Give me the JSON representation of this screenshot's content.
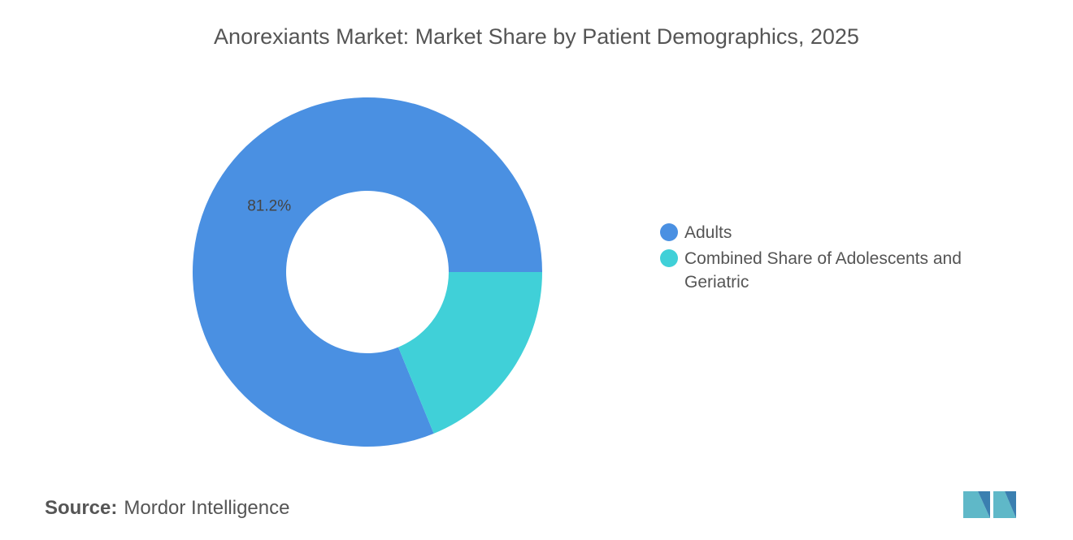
{
  "chart_data": {
    "type": "donut",
    "title": "Anorexiants Market: Market Share by Patient Demographics, 2025",
    "categories": [
      "Adults",
      "Combined Share of Adolescents and Geriatric"
    ],
    "values": [
      81.2,
      18.8
    ],
    "value_labels": [
      "81.2%",
      null
    ],
    "colors": [
      "#4a90e2",
      "#40d0d8"
    ],
    "source_label": "Source:",
    "source": "Mordor Intelligence"
  }
}
